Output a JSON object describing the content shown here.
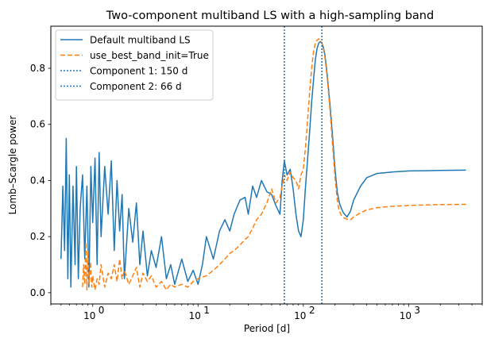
{
  "chart_data": {
    "type": "line",
    "title": "Two-component multiband LS with a high-sampling band",
    "xlabel": "Period [d]",
    "ylabel": "Lomb–Scargle power",
    "xscale": "log",
    "xlim": [
      0.4,
      5000
    ],
    "ylim": [
      -0.04,
      0.95
    ],
    "x_ticks": [
      {
        "value": 1,
        "base": "10",
        "exp": "0"
      },
      {
        "value": 10,
        "base": "10",
        "exp": "1"
      },
      {
        "value": 100,
        "base": "10",
        "exp": "2"
      },
      {
        "value": 1000,
        "base": "10",
        "exp": "3"
      }
    ],
    "y_ticks": [
      {
        "value": 0.0,
        "label": "0.0"
      },
      {
        "value": 0.2,
        "label": "0.2"
      },
      {
        "value": 0.4,
        "label": "0.4"
      },
      {
        "value": 0.6,
        "label": "0.6"
      },
      {
        "value": 0.8,
        "label": "0.8"
      }
    ],
    "grid": false,
    "legend_position": "top-left",
    "series": [
      {
        "name": "Default multiband LS",
        "color": "#1f77b4",
        "style": "solid",
        "x": [
          0.5,
          0.52,
          0.54,
          0.56,
          0.58,
          0.6,
          0.62,
          0.65,
          0.68,
          0.7,
          0.73,
          0.76,
          0.8,
          0.84,
          0.88,
          0.92,
          0.96,
          1.0,
          1.05,
          1.1,
          1.15,
          1.2,
          1.3,
          1.4,
          1.5,
          1.6,
          1.7,
          1.8,
          1.9,
          2.0,
          2.2,
          2.4,
          2.6,
          2.8,
          3.0,
          3.3,
          3.6,
          4.0,
          4.5,
          5.0,
          5.5,
          6.0,
          7.0,
          8.0,
          9.0,
          10,
          11,
          12,
          14,
          16,
          18,
          20,
          22,
          25,
          28,
          30,
          33,
          36,
          40,
          45,
          50,
          55,
          60,
          63,
          66,
          70,
          75,
          80,
          85,
          90,
          95,
          100,
          105,
          110,
          115,
          120,
          125,
          130,
          135,
          140,
          145,
          150,
          155,
          160,
          165,
          170,
          180,
          190,
          200,
          210,
          220,
          230,
          240,
          260,
          280,
          300,
          350,
          400,
          500,
          700,
          1000,
          1500,
          2000,
          3500
        ],
        "y": [
          0.12,
          0.38,
          0.15,
          0.55,
          0.05,
          0.42,
          0.02,
          0.38,
          0.1,
          0.45,
          0.05,
          0.3,
          0.42,
          0.12,
          0.38,
          0.02,
          0.45,
          0.25,
          0.48,
          0.1,
          0.5,
          0.2,
          0.45,
          0.28,
          0.47,
          0.15,
          0.4,
          0.22,
          0.35,
          0.05,
          0.3,
          0.18,
          0.32,
          0.1,
          0.22,
          0.06,
          0.15,
          0.09,
          0.2,
          0.05,
          0.1,
          0.03,
          0.12,
          0.04,
          0.08,
          0.03,
          0.1,
          0.2,
          0.12,
          0.22,
          0.26,
          0.22,
          0.28,
          0.33,
          0.34,
          0.28,
          0.38,
          0.34,
          0.4,
          0.36,
          0.35,
          0.31,
          0.28,
          0.4,
          0.47,
          0.42,
          0.44,
          0.37,
          0.28,
          0.22,
          0.2,
          0.26,
          0.38,
          0.48,
          0.58,
          0.68,
          0.76,
          0.83,
          0.87,
          0.89,
          0.895,
          0.89,
          0.875,
          0.85,
          0.81,
          0.76,
          0.66,
          0.55,
          0.44,
          0.36,
          0.32,
          0.3,
          0.285,
          0.27,
          0.29,
          0.33,
          0.38,
          0.41,
          0.425,
          0.43,
          0.434,
          0.435,
          0.436,
          0.437
        ]
      },
      {
        "name": "use_best_band_init=True",
        "color": "#ff7f0e",
        "style": "dashed",
        "x": [
          0.8,
          0.82,
          0.84,
          0.86,
          0.88,
          0.9,
          0.92,
          0.95,
          0.98,
          1.0,
          1.05,
          1.1,
          1.15,
          1.2,
          1.3,
          1.4,
          1.5,
          1.6,
          1.7,
          1.8,
          1.9,
          2.0,
          2.2,
          2.4,
          2.6,
          2.8,
          3.0,
          3.3,
          3.6,
          4.0,
          4.5,
          5.0,
          5.5,
          6.0,
          7.0,
          8.0,
          9.0,
          10,
          12,
          14,
          16,
          18,
          20,
          22,
          25,
          28,
          30,
          33,
          36,
          40,
          45,
          50,
          55,
          60,
          63,
          66,
          70,
          75,
          80,
          85,
          90,
          95,
          100,
          105,
          110,
          115,
          120,
          125,
          130,
          135,
          140,
          145,
          150,
          155,
          160,
          165,
          170,
          180,
          190,
          200,
          210,
          220,
          230,
          240,
          260,
          280,
          300,
          350,
          400,
          500,
          700,
          1000,
          1500,
          2000,
          3500
        ],
        "y": [
          0.02,
          0.1,
          0.03,
          0.18,
          0.01,
          0.15,
          0.03,
          0.11,
          0.02,
          0.06,
          0.01,
          0.05,
          0.03,
          0.1,
          0.02,
          0.07,
          0.05,
          0.1,
          0.04,
          0.12,
          0.05,
          0.08,
          0.03,
          0.06,
          0.09,
          0.02,
          0.07,
          0.04,
          0.06,
          0.02,
          0.04,
          0.01,
          0.03,
          0.02,
          0.03,
          0.02,
          0.04,
          0.05,
          0.06,
          0.08,
          0.1,
          0.12,
          0.14,
          0.15,
          0.17,
          0.19,
          0.2,
          0.23,
          0.26,
          0.28,
          0.32,
          0.37,
          0.32,
          0.34,
          0.38,
          0.42,
          0.4,
          0.43,
          0.41,
          0.4,
          0.37,
          0.42,
          0.44,
          0.52,
          0.62,
          0.72,
          0.8,
          0.86,
          0.89,
          0.9,
          0.905,
          0.9,
          0.89,
          0.87,
          0.84,
          0.8,
          0.75,
          0.64,
          0.52,
          0.41,
          0.33,
          0.29,
          0.275,
          0.268,
          0.262,
          0.26,
          0.27,
          0.285,
          0.295,
          0.303,
          0.308,
          0.311,
          0.313,
          0.314,
          0.315
        ]
      },
      {
        "name": "Component 1: 150 d",
        "color": "#1f77b4",
        "style": "dotted",
        "vline": 150
      },
      {
        "name": "Component 2: 66 d",
        "color": "#1f77b4",
        "style": "dotted",
        "vline": 66
      }
    ]
  }
}
